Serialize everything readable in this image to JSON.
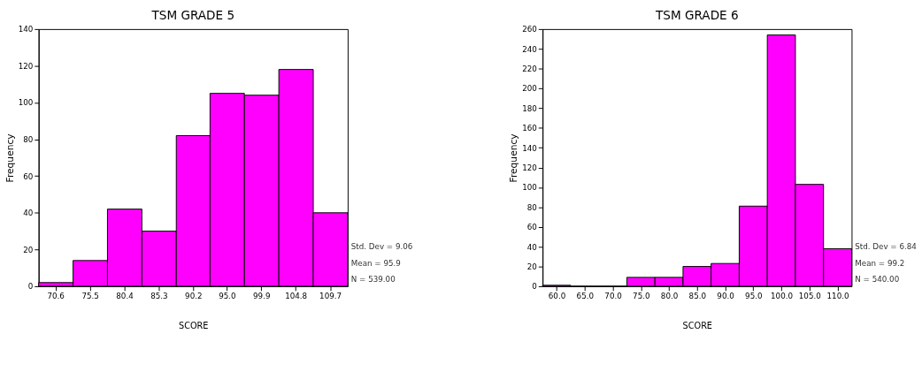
{
  "chart_data": [
    {
      "type": "histogram",
      "title": "TSM GRADE 5",
      "xlabel": "SCORE",
      "ylabel": "Frequency",
      "color": "#ff00ff",
      "bins": [
        68.2,
        73.1,
        78.0,
        82.9,
        87.8,
        92.6,
        97.5,
        102.4,
        107.3,
        112.2
      ],
      "values": [
        2,
        14,
        42,
        30,
        82,
        105,
        104,
        118,
        40
      ],
      "xlim": [
        68.2,
        112.2
      ],
      "xticks": [
        70.6,
        75.5,
        80.4,
        85.3,
        90.2,
        {
          "value": 95.0,
          "label": "95.0"
        },
        99.9,
        104.8,
        109.7
      ],
      "ylim": [
        0,
        140
      ],
      "yticks": [
        0,
        20,
        40,
        60,
        80,
        100,
        120,
        140
      ],
      "grid": false,
      "annotations": [
        "Std. Dev = 9.06",
        "Mean = 95.9",
        "N = 539.00"
      ]
    },
    {
      "type": "histogram",
      "title": "TSM GRADE 6",
      "xlabel": "SCORE",
      "ylabel": "Frequency",
      "color": "#ff00ff",
      "bins": [
        57.5,
        62.5,
        67.5,
        72.5,
        77.5,
        82.5,
        87.5,
        92.5,
        97.5,
        102.5,
        107.5,
        112.5
      ],
      "values": [
        1,
        0,
        0,
        9,
        9,
        20,
        23,
        81,
        254,
        103,
        38
      ],
      "xlim": [
        57.5,
        112.5
      ],
      "xticks": [
        {
          "value": 60,
          "label": "60.0"
        },
        {
          "value": 65,
          "label": "65.0"
        },
        {
          "value": 70,
          "label": "70.0"
        },
        {
          "value": 75,
          "label": "75.0"
        },
        {
          "value": 80,
          "label": "80.0"
        },
        {
          "value": 85,
          "label": "85.0"
        },
        {
          "value": 90,
          "label": "90.0"
        },
        {
          "value": 95,
          "label": "95.0"
        },
        {
          "value": 100,
          "label": "100.0"
        },
        {
          "value": 105,
          "label": "105.0"
        },
        {
          "value": 110,
          "label": "110.0"
        }
      ],
      "ylim": [
        0,
        260
      ],
      "yticks": [
        0,
        20,
        40,
        60,
        80,
        100,
        120,
        140,
        160,
        180,
        200,
        220,
        240,
        260
      ],
      "grid": false,
      "annotations": [
        "Std. Dev = 6.84",
        "Mean = 99.2",
        "N = 540.00"
      ]
    }
  ]
}
